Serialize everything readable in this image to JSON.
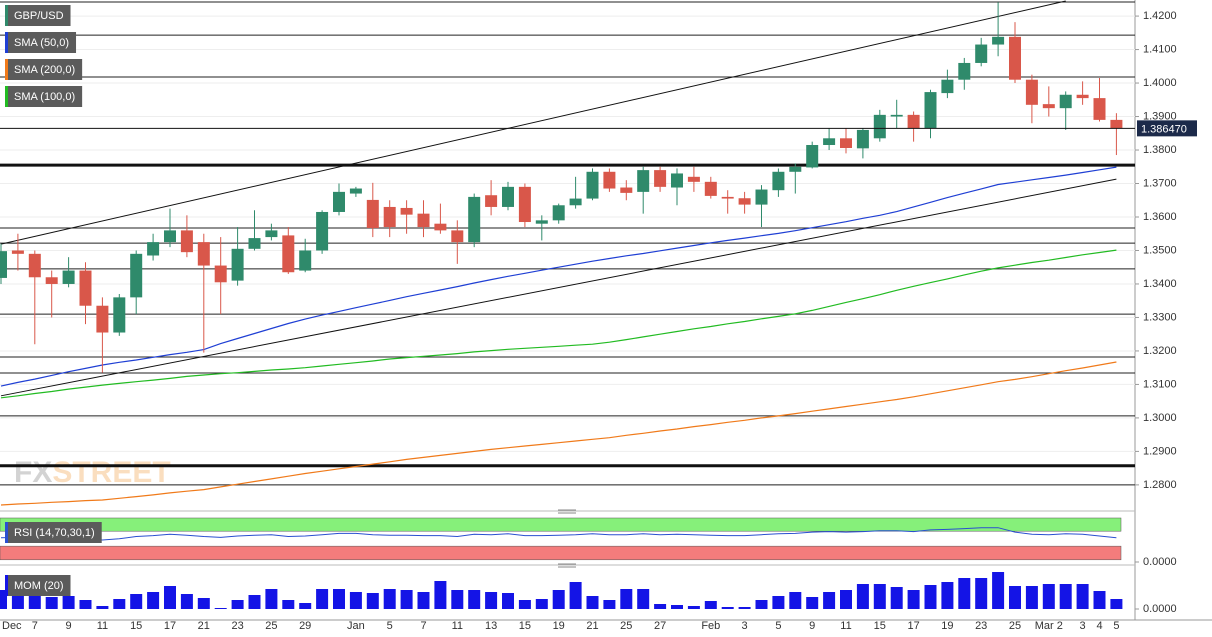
{
  "chart_data": [
    {
      "type": "candlestick",
      "name": "GBP/USD",
      "up_color": "#2f8a6b",
      "down_color": "#d9574a",
      "grid": true,
      "categories": [
        "Dec",
        null,
        "7",
        null,
        "9",
        null,
        "11",
        null,
        "15",
        null,
        "17",
        null,
        "21",
        null,
        "23",
        null,
        "25",
        null,
        "29",
        null,
        null,
        "Jan",
        null,
        "5",
        null,
        "7",
        null,
        "11",
        null,
        "13",
        null,
        "15",
        null,
        "19",
        null,
        "21",
        null,
        "25",
        null,
        "27",
        null,
        null,
        "Feb",
        null,
        "3",
        null,
        "5",
        null,
        "9",
        null,
        "11",
        null,
        "15",
        null,
        "17",
        null,
        "19",
        null,
        "23",
        null,
        "25",
        null,
        "Mar 2",
        null,
        "3",
        "4",
        "5"
      ],
      "open": [
        1.3418,
        1.35,
        1.349,
        1.342,
        1.34,
        1.344,
        1.3335,
        1.3255,
        1.336,
        1.3485,
        1.3525,
        1.356,
        1.3525,
        1.3455,
        1.341,
        1.3505,
        1.354,
        1.3545,
        1.344,
        1.35,
        1.3615,
        1.367,
        1.3651,
        1.363,
        1.3627,
        1.361,
        1.358,
        1.356,
        1.3525,
        1.3665,
        1.363,
        1.369,
        1.358,
        1.359,
        1.3635,
        1.3655,
        1.3735,
        1.3688,
        1.3675,
        1.374,
        1.3688,
        1.372,
        1.3705,
        1.366,
        1.3656,
        1.3637,
        1.368,
        1.3735,
        1.3748,
        1.3815,
        1.3835,
        1.3805,
        1.3835,
        1.39,
        1.3905,
        1.3865,
        1.397,
        1.401,
        1.406,
        1.4115,
        1.4138,
        1.401,
        1.3937,
        1.3925,
        1.3965,
        1.3955,
        1.389
      ],
      "high": [
        1.352,
        1.355,
        1.35,
        1.344,
        1.348,
        1.3465,
        1.336,
        1.337,
        1.35,
        1.355,
        1.3625,
        1.3605,
        1.355,
        1.354,
        1.357,
        1.362,
        1.358,
        1.357,
        1.3535,
        1.362,
        1.37,
        1.369,
        1.3702,
        1.365,
        1.365,
        1.365,
        1.364,
        1.359,
        1.367,
        1.371,
        1.3705,
        1.37,
        1.3605,
        1.364,
        1.372,
        1.3745,
        1.3745,
        1.371,
        1.375,
        1.375,
        1.3745,
        1.375,
        1.372,
        1.368,
        1.3675,
        1.3695,
        1.3745,
        1.376,
        1.3825,
        1.3865,
        1.3865,
        1.3865,
        1.392,
        1.395,
        1.3915,
        1.398,
        1.404,
        1.4075,
        1.4135,
        1.4241,
        1.4182,
        1.4025,
        1.399,
        1.3975,
        1.4005,
        1.4015,
        1.391
      ],
      "low": [
        1.34,
        1.344,
        1.322,
        1.33,
        1.339,
        1.328,
        1.3135,
        1.3245,
        1.331,
        1.347,
        1.351,
        1.348,
        1.3195,
        1.331,
        1.3395,
        1.35,
        1.353,
        1.343,
        1.3435,
        1.349,
        1.3605,
        1.366,
        1.354,
        1.354,
        1.355,
        1.354,
        1.355,
        1.346,
        1.351,
        1.3605,
        1.362,
        1.357,
        1.353,
        1.358,
        1.3625,
        1.365,
        1.3675,
        1.365,
        1.361,
        1.3675,
        1.3635,
        1.3675,
        1.3655,
        1.361,
        1.361,
        1.357,
        1.366,
        1.367,
        1.3745,
        1.38,
        1.379,
        1.3775,
        1.3825,
        1.3865,
        1.3825,
        1.3835,
        1.3955,
        1.398,
        1.405,
        1.408,
        1.4,
        1.388,
        1.39,
        1.386,
        1.3935,
        1.3885,
        1.3785
      ],
      "close": [
        1.3498,
        1.349,
        1.342,
        1.34,
        1.344,
        1.3335,
        1.3255,
        1.336,
        1.349,
        1.3525,
        1.356,
        1.3495,
        1.3455,
        1.3405,
        1.3505,
        1.3537,
        1.356,
        1.3435,
        1.35,
        1.3615,
        1.3675,
        1.3685,
        1.3567,
        1.357,
        1.3607,
        1.357,
        1.356,
        1.3525,
        1.366,
        1.363,
        1.369,
        1.3585,
        1.359,
        1.3635,
        1.3655,
        1.3735,
        1.3685,
        1.3672,
        1.374,
        1.369,
        1.373,
        1.3705,
        1.3663,
        1.3655,
        1.3637,
        1.3682,
        1.3735,
        1.375,
        1.3815,
        1.3835,
        1.3806,
        1.386,
        1.3905,
        1.3905,
        1.3865,
        1.3973,
        1.401,
        1.406,
        1.4115,
        1.4138,
        1.401,
        1.3935,
        1.3925,
        1.3965,
        1.3955,
        1.389,
        1.38647
      ],
      "series": [
        {
          "name": "SMA (50,0)",
          "color": "#1f3fd4",
          "values": [
            1.3095,
            1.3106,
            1.3116,
            1.3127,
            1.3138,
            1.3148,
            1.3158,
            1.3166,
            1.3173,
            1.3181,
            1.3189,
            1.3196,
            1.3204,
            1.3222,
            1.3237,
            1.3252,
            1.3267,
            1.3282,
            1.3295,
            1.3307,
            1.3318,
            1.3329,
            1.334,
            1.3351,
            1.3362,
            1.3372,
            1.3382,
            1.3392,
            1.3403,
            1.3413,
            1.3423,
            1.3432,
            1.3441,
            1.345,
            1.3459,
            1.3468,
            1.3476,
            1.3484,
            1.3491,
            1.3499,
            1.3507,
            1.3515,
            1.3523,
            1.353,
            1.3537,
            1.3544,
            1.3551,
            1.3559,
            1.3568,
            1.3577,
            1.3586,
            1.3596,
            1.3605,
            1.3616,
            1.363,
            1.3644,
            1.3658,
            1.3671,
            1.3684,
            1.3697,
            1.3704,
            1.3711,
            1.3718,
            1.3725,
            1.3733,
            1.3741,
            1.3749
          ]
        },
        {
          "name": "SMA (200,0)",
          "color": "#f07a1a",
          "values": [
            1.274,
            1.2743,
            1.2745,
            1.2748,
            1.275,
            1.2753,
            1.2755,
            1.276,
            1.2765,
            1.277,
            1.2776,
            1.2781,
            1.2786,
            1.2794,
            1.2802,
            1.281,
            1.2818,
            1.2826,
            1.2834,
            1.2841,
            1.2848,
            1.2855,
            1.2862,
            1.2869,
            1.2876,
            1.2882,
            1.2888,
            1.2894,
            1.29,
            1.2906,
            1.2911,
            1.2916,
            1.2921,
            1.2926,
            1.2931,
            1.2936,
            1.2941,
            1.2948,
            1.2954,
            1.2961,
            1.2967,
            1.2974,
            1.298,
            1.2987,
            1.2993,
            1.3,
            1.3006,
            1.3013,
            1.302,
            1.3027,
            1.3034,
            1.3041,
            1.3048,
            1.3055,
            1.3063,
            1.3072,
            1.3081,
            1.309,
            1.3099,
            1.3108,
            1.3115,
            1.3123,
            1.3132,
            1.3141,
            1.3149,
            1.3158,
            1.3167
          ]
        },
        {
          "name": "SMA (100,0)",
          "color": "#22bb22",
          "values": [
            1.306,
            1.3066,
            1.3073,
            1.3079,
            1.3086,
            1.3092,
            1.3098,
            1.3103,
            1.3108,
            1.3113,
            1.3118,
            1.3124,
            1.3128,
            1.3132,
            1.3135,
            1.3139,
            1.3143,
            1.3146,
            1.315,
            1.3155,
            1.316,
            1.3165,
            1.317,
            1.3176,
            1.318,
            1.3184,
            1.3188,
            1.3192,
            1.3197,
            1.3201,
            1.3205,
            1.3208,
            1.3211,
            1.3214,
            1.3217,
            1.322,
            1.3226,
            1.3234,
            1.3242,
            1.325,
            1.3258,
            1.3266,
            1.3273,
            1.3281,
            1.3288,
            1.3296,
            1.3303,
            1.3311,
            1.3321,
            1.3333,
            1.3345,
            1.3356,
            1.3368,
            1.3381,
            1.3393,
            1.3404,
            1.3415,
            1.3427,
            1.3438,
            1.3448,
            1.3456,
            1.3464,
            1.3471,
            1.3479,
            1.3487,
            1.3494,
            1.3501
          ]
        }
      ],
      "ylim": [
        1.2725,
        1.4248
      ],
      "yticks": [
        {
          "value": 1.42,
          "label": "1.4200"
        },
        {
          "value": 1.41,
          "label": "1.4100"
        },
        {
          "value": 1.4,
          "label": "1.4000"
        },
        {
          "value": 1.39,
          "label": "1.3900"
        },
        {
          "value": 1.38,
          "label": "1.3800"
        },
        {
          "value": 1.37,
          "label": "1.3700"
        },
        {
          "value": 1.36,
          "label": "1.3600"
        },
        {
          "value": 1.35,
          "label": "1.3500"
        },
        {
          "value": 1.34,
          "label": "1.3400"
        },
        {
          "value": 1.33,
          "label": "1.3300"
        },
        {
          "value": 1.32,
          "label": "1.3200"
        },
        {
          "value": 1.31,
          "label": "1.3100"
        },
        {
          "value": 1.3,
          "label": "1.3000"
        },
        {
          "value": 1.29,
          "label": "1.2900"
        },
        {
          "value": 1.28,
          "label": "1.2800"
        }
      ],
      "levels": [
        1.4242,
        1.4143,
        1.4018,
        1.3567,
        1.3522,
        1.3445,
        1.331,
        1.3182,
        1.3134,
        1.3006,
        1.28
      ],
      "major_levels": [
        1.3755,
        1.2857
      ],
      "trendlines": [
        {
          "from": [
            0,
            1.3519
          ],
          "to": [
            63,
            1.4245
          ]
        },
        {
          "from": [
            0,
            1.3066
          ],
          "to": [
            66,
            1.3713
          ]
        }
      ],
      "last_price": {
        "value": 1.38647,
        "label": "1.386470"
      },
      "watermark": [
        "FX",
        "STREET"
      ]
    },
    {
      "type": "line",
      "series": [
        {
          "name": "RSI (14,70,30,1)",
          "color": "#2a4fd0",
          "values": [
            55,
            56,
            54,
            53,
            55,
            52,
            50,
            53,
            58,
            60,
            63,
            61,
            58,
            56,
            59,
            61,
            62,
            58,
            59,
            62,
            65,
            65,
            62,
            61,
            61,
            60,
            60,
            58,
            63,
            62,
            64,
            60,
            60,
            61,
            62,
            64,
            62,
            62,
            64,
            62,
            63,
            62,
            61,
            60,
            60,
            62,
            64,
            65,
            68,
            69,
            68,
            69,
            71,
            71,
            69,
            73,
            74,
            76,
            78,
            78,
            68,
            63,
            62,
            64,
            63,
            59,
            55
          ]
        }
      ],
      "bands": [
        {
          "from": 70,
          "to": 100,
          "color": "#86f07a"
        },
        {
          "from": 5,
          "to": 36,
          "color": "#f47c7c"
        }
      ],
      "ylim": [
        0,
        100
      ],
      "yticks": [
        {
          "value": 0,
          "label": "0.0000"
        }
      ]
    },
    {
      "type": "bar",
      "series": [
        {
          "name": "MOM (20)",
          "color": "#1414e6",
          "values": [
            0.0152,
            0.0136,
            0.0112,
            0.0096,
            0.0104,
            0.0072,
            0.0024,
            0.008,
            0.012,
            0.0136,
            0.0184,
            0.012,
            0.0088,
            0.0008,
            0.0072,
            0.0112,
            0.016,
            0.0072,
            0.0048,
            0.016,
            0.016,
            0.0136,
            0.0128,
            0.016,
            0.0152,
            0.0136,
            0.0224,
            0.0152,
            0.0152,
            0.0136,
            0.0128,
            0.0072,
            0.008,
            0.0152,
            0.0216,
            0.0104,
            0.0072,
            0.016,
            0.016,
            0.004,
            0.0032,
            0.0024,
            0.0064,
            0.0016,
            0.0016,
            0.0072,
            0.0104,
            0.0136,
            0.0096,
            0.0136,
            0.0152,
            0.02,
            0.02,
            0.0176,
            0.0152,
            0.0192,
            0.0216,
            0.0248,
            0.0248,
            0.0296,
            0.0184,
            0.0184,
            0.02,
            0.02,
            0.02,
            0.0144,
            0.008
          ]
        }
      ],
      "ylim": [
        -0.0088,
        0.0312
      ],
      "yticks": [
        {
          "value": 0,
          "label": "0.0000"
        }
      ]
    }
  ]
}
